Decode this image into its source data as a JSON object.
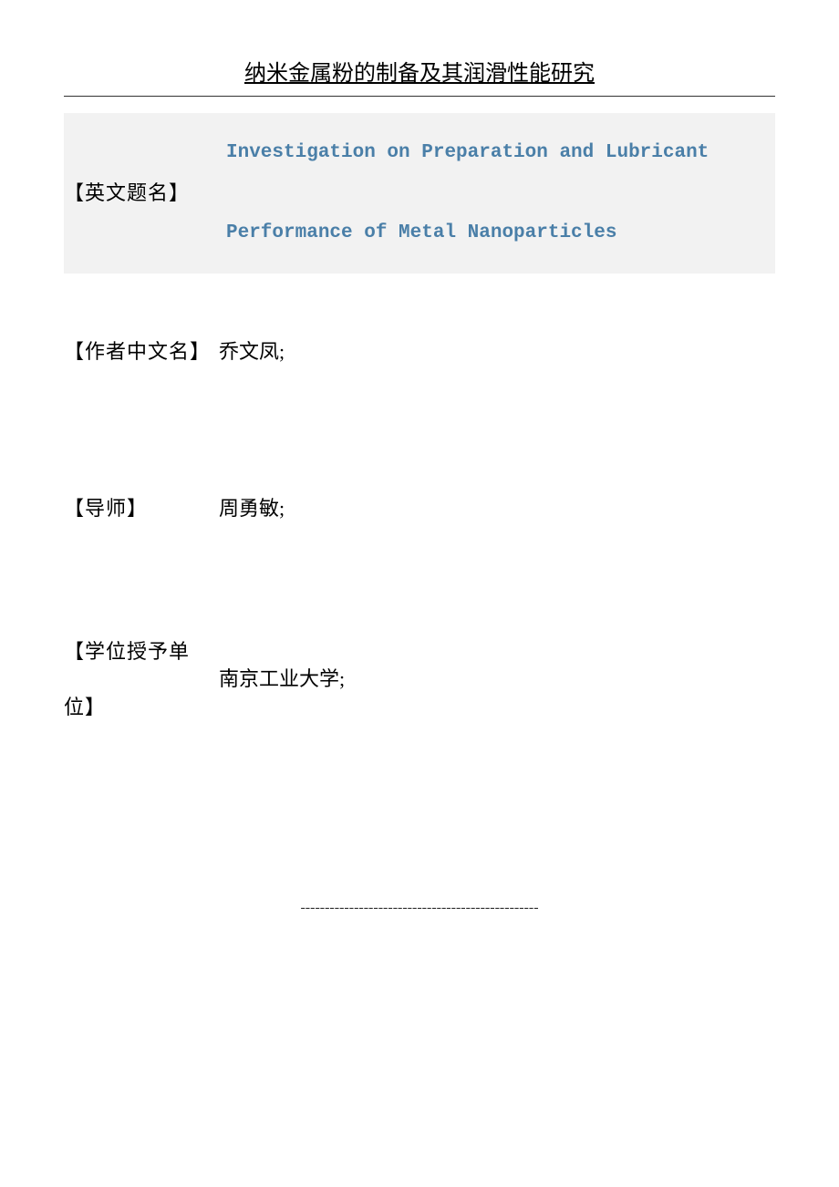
{
  "title": "纳米金属粉的制备及其润滑性能研究",
  "rows": {
    "english_title": {
      "label": "【英文题名】",
      "value": "Investigation on Preparation and Lubricant Performance of Metal Nanoparticles"
    },
    "author_cn": {
      "label": "【作者中文名】",
      "value": "乔文凤;"
    },
    "supervisor": {
      "label": "【导师】",
      "value": "周勇敏;"
    },
    "institution": {
      "label": "【学位授予单位】",
      "value": "南京工业大学;"
    }
  },
  "footer_dashes": "-------------------------------------------------",
  "colors": {
    "title_text": "#000000",
    "english_link": "#4a7fa8",
    "cell_bg_gray": "#f2f2f2",
    "cell_bg_white": "#ffffff",
    "border": "#333333"
  }
}
